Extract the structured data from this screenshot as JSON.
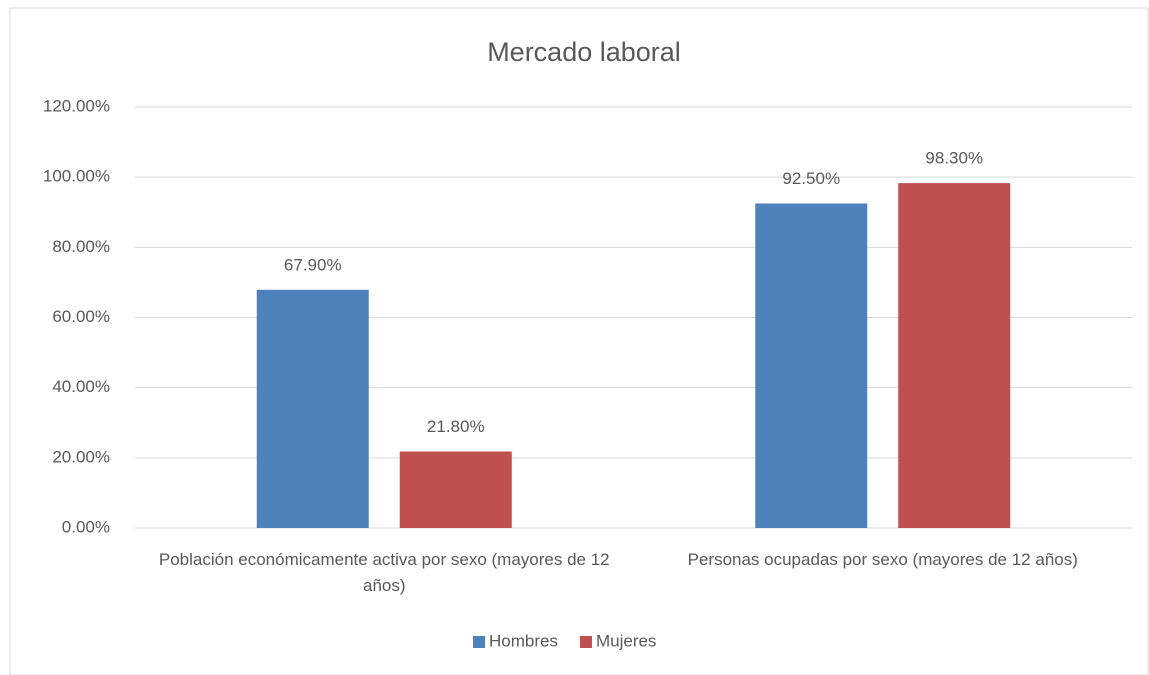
{
  "chart_data": {
    "type": "bar",
    "title": "Mercado laboral",
    "categories": [
      "Población económicamente activa por sexo (mayores de 12 años)",
      "Personas ocupadas por sexo (mayores de 12 años)"
    ],
    "series": [
      {
        "name": "Hombres",
        "color": "#4f81bd",
        "values": [
          67.9,
          92.5
        ],
        "value_labels": [
          "67.90%",
          "92.50%"
        ]
      },
      {
        "name": "Mujeres",
        "color": "#c0504d",
        "values": [
          21.8,
          98.3
        ],
        "value_labels": [
          "21.80%",
          "98.30%"
        ]
      }
    ],
    "ylim": [
      0,
      120
    ],
    "yticks": [
      {
        "value": 0,
        "label": "0.00%"
      },
      {
        "value": 20,
        "label": "20.00%"
      },
      {
        "value": 40,
        "label": "40.00%"
      },
      {
        "value": 60,
        "label": "60.00%"
      },
      {
        "value": 80,
        "label": "80.00%"
      },
      {
        "value": 100,
        "label": "100.00%"
      },
      {
        "value": 120,
        "label": "120.00%"
      }
    ],
    "grid": true,
    "legend": "bottom"
  }
}
